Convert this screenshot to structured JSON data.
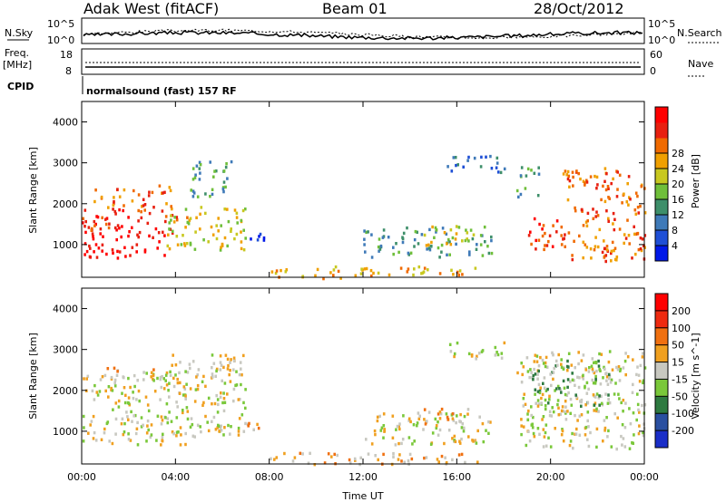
{
  "header": {
    "station": "Adak West (fitACF)",
    "beam": "Beam 01",
    "date": "28/Oct/2012"
  },
  "top_panels": {
    "nsky_label": "N.Sky",
    "nsearch_label": "N.Search",
    "nsky_ticks": [
      "10^5",
      "10^0"
    ],
    "nsearch_ticks": [
      "10^5",
      "10^0"
    ],
    "freq_label_line1": "Freq.",
    "freq_label_line2": "[MHz]",
    "freq_ticks": [
      "18",
      "8"
    ],
    "nave_label": "Nave",
    "nave_ticks": [
      "60",
      "0"
    ],
    "cpid_label": "CPID",
    "cpid_text": "normalsound (fast) 157 RF"
  },
  "chart_data": [
    {
      "type": "heatmap",
      "title": "Power",
      "ylabel": "Slant Range [km]",
      "xlabel": "Time UT",
      "x_ticks": [
        "00:00",
        "04:00",
        "08:00",
        "12:00",
        "16:00",
        "20:00",
        "00:00"
      ],
      "y_ticks": [
        1000,
        2000,
        3000,
        4000
      ],
      "ylim": [
        200,
        4500
      ],
      "colorbar": {
        "label": "Power [dB]",
        "ticks": [
          4,
          8,
          12,
          16,
          20,
          24,
          28
        ],
        "colors": [
          "#0018e8",
          "#1f4fd6",
          "#3f7ab8",
          "#3e8f6a",
          "#6fbf3a",
          "#c8c820",
          "#f0a000",
          "#f06a00",
          "#e82010",
          "#ff0000"
        ]
      },
      "regions": [
        {
          "t0": 0.0,
          "t1": 3.6,
          "r0": 700,
          "r1": 1300,
          "level": 9
        },
        {
          "t0": 0.0,
          "t1": 4.5,
          "r0": 1300,
          "r1": 1900,
          "level": 8
        },
        {
          "t0": 0.5,
          "t1": 3.8,
          "r0": 1900,
          "r1": 2500,
          "level": 7
        },
        {
          "t0": 3.6,
          "t1": 7.0,
          "r0": 900,
          "r1": 2000,
          "level": 5
        },
        {
          "t0": 4.5,
          "t1": 6.5,
          "r0": 2200,
          "r1": 3100,
          "level": 3
        },
        {
          "t0": 6.8,
          "t1": 7.8,
          "r0": 1000,
          "r1": 1300,
          "level": 1
        },
        {
          "t0": 12.0,
          "t1": 17.5,
          "r0": 700,
          "r1": 1500,
          "level": 3
        },
        {
          "t0": 14.5,
          "t1": 17.0,
          "r0": 1000,
          "r1": 1500,
          "level": 5
        },
        {
          "t0": 15.5,
          "t1": 18.0,
          "r0": 2800,
          "r1": 3200,
          "level": 2
        },
        {
          "t0": 18.5,
          "t1": 19.5,
          "r0": 2200,
          "r1": 3000,
          "level": 3
        },
        {
          "t0": 19.0,
          "t1": 20.5,
          "r0": 900,
          "r1": 1800,
          "level": 8
        },
        {
          "t0": 20.5,
          "t1": 24.0,
          "r0": 600,
          "r1": 2900,
          "level": 7
        },
        {
          "t0": 8.0,
          "t1": 17.0,
          "r0": 200,
          "r1": 500,
          "level": 6
        }
      ]
    },
    {
      "type": "heatmap",
      "title": "Velocity",
      "ylabel": "Slant Range [km]",
      "xlabel": "Time UT",
      "x_ticks": [
        "00:00",
        "04:00",
        "08:00",
        "12:00",
        "16:00",
        "20:00",
        "00:00"
      ],
      "y_ticks": [
        1000,
        2000,
        3000,
        4000
      ],
      "ylim": [
        200,
        4500
      ],
      "colorbar": {
        "label": "Velocity [m s^-1]",
        "ticks": [
          200,
          100,
          50,
          15,
          -15,
          -50,
          -100,
          -200
        ],
        "colors": [
          "#1a2ec8",
          "#2a4fa0",
          "#2e7a40",
          "#7ac83a",
          "#c8c8c0",
          "#f0a020",
          "#f07010",
          "#ee2a10",
          "#ff0000"
        ]
      },
      "regions": [
        {
          "t0": 0.0,
          "t1": 4.5,
          "r0": 700,
          "r1": 2500,
          "level": 4
        },
        {
          "t0": 3.6,
          "t1": 7.0,
          "r0": 900,
          "r1": 2900,
          "level": 4
        },
        {
          "t0": 1.0,
          "t1": 3.5,
          "r0": 2300,
          "r1": 2600,
          "level": 5
        },
        {
          "t0": 6.8,
          "t1": 7.8,
          "r0": 1000,
          "r1": 1300,
          "level": 5
        },
        {
          "t0": 12.0,
          "t1": 17.5,
          "r0": 700,
          "r1": 1500,
          "level": 4
        },
        {
          "t0": 14.5,
          "t1": 16.5,
          "r0": 1200,
          "r1": 1600,
          "level": 5
        },
        {
          "t0": 15.5,
          "t1": 18.0,
          "r0": 2800,
          "r1": 3200,
          "level": 4
        },
        {
          "t0": 18.5,
          "t1": 24.0,
          "r0": 600,
          "r1": 3000,
          "level": 4
        },
        {
          "t0": 19.0,
          "t1": 22.5,
          "r0": 1400,
          "r1": 2800,
          "level": 3
        },
        {
          "t0": 8.0,
          "t1": 17.0,
          "r0": 200,
          "r1": 500,
          "level": 5
        }
      ]
    }
  ],
  "colors": {
    "axis": "#000000",
    "background": "#ffffff"
  }
}
